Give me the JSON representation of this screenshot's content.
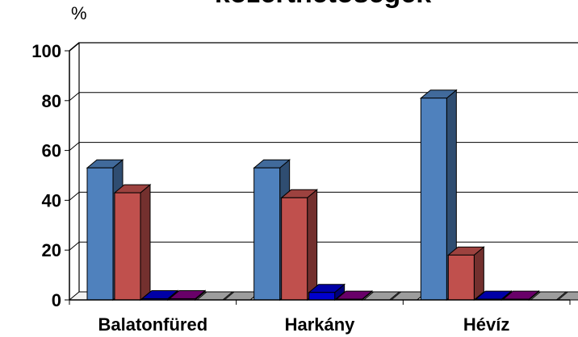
{
  "chart_data": {
    "type": "bar",
    "title": "közérthetőségek",
    "unit_label": "%",
    "xlabel": "",
    "ylabel": "",
    "categories": [
      "Balatonfüred",
      "Harkány",
      "Hévíz"
    ],
    "series": [
      {
        "color": "#4f81bd",
        "values": [
          53,
          53,
          81
        ]
      },
      {
        "color": "#c0504d",
        "values": [
          43,
          41,
          18
        ]
      },
      {
        "color": "#0000cc",
        "values": [
          0.5,
          3,
          0.3
        ]
      },
      {
        "color": "#800080",
        "values": [
          0.5,
          0.3,
          0.3
        ]
      },
      {
        "color": "#c0c0c0",
        "values": [
          0,
          0,
          0
        ]
      },
      {
        "color": "#c0c0c0",
        "values": [
          0,
          0,
          0
        ]
      }
    ],
    "ylim": [
      0,
      100
    ],
    "yticks": [
      0,
      20,
      40,
      60,
      80,
      100
    ],
    "grid": true,
    "legend": "none"
  }
}
